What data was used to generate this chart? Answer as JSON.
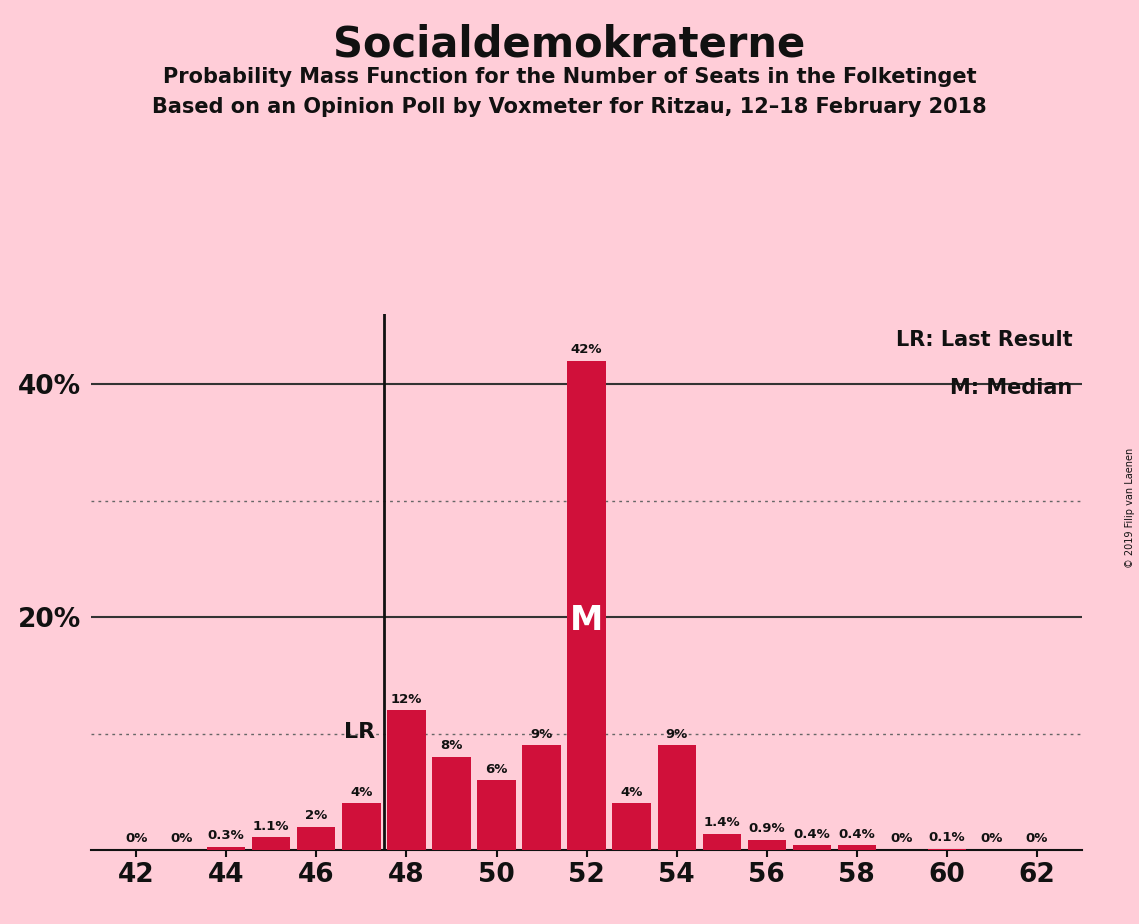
{
  "title": "Socialdemokraterne",
  "subtitle1": "Probability Mass Function for the Number of Seats in the Folketinget",
  "subtitle2": "Based on an Opinion Poll by Voxmeter for Ritzau, 12–18 February 2018",
  "copyright": "© 2019 Filip van Laenen",
  "seats": [
    42,
    43,
    44,
    45,
    46,
    47,
    48,
    49,
    50,
    51,
    52,
    53,
    54,
    55,
    56,
    57,
    58,
    59,
    60,
    61,
    62
  ],
  "probabilities": [
    0.0,
    0.0,
    0.3,
    1.1,
    2.0,
    4.0,
    12.0,
    8.0,
    6.0,
    9.0,
    42.0,
    4.0,
    9.0,
    1.4,
    0.9,
    0.4,
    0.4,
    0.0,
    0.1,
    0.0,
    0.0
  ],
  "labels": [
    "0%",
    "0%",
    "0.3%",
    "1.1%",
    "2%",
    "4%",
    "12%",
    "8%",
    "6%",
    "9%",
    "42%",
    "4%",
    "9%",
    "1.4%",
    "0.9%",
    "0.4%",
    "0.4%",
    "0%",
    "0.1%",
    "0%",
    "0%"
  ],
  "last_result_seat": 47.5,
  "median_seat": 52,
  "bar_color_main": "#D0103A",
  "background_color": "#FFCDD8",
  "text_color": "#111111",
  "grid_color_solid": "#333333",
  "grid_color_dotted": "#666666",
  "ylim": [
    0,
    46
  ],
  "xlim": [
    41.0,
    63.0
  ],
  "xlabel_ticks": [
    42,
    44,
    46,
    48,
    50,
    52,
    54,
    56,
    58,
    60,
    62
  ],
  "ytick_solid": [
    20,
    40
  ],
  "ytick_dotted": [
    10,
    30
  ]
}
